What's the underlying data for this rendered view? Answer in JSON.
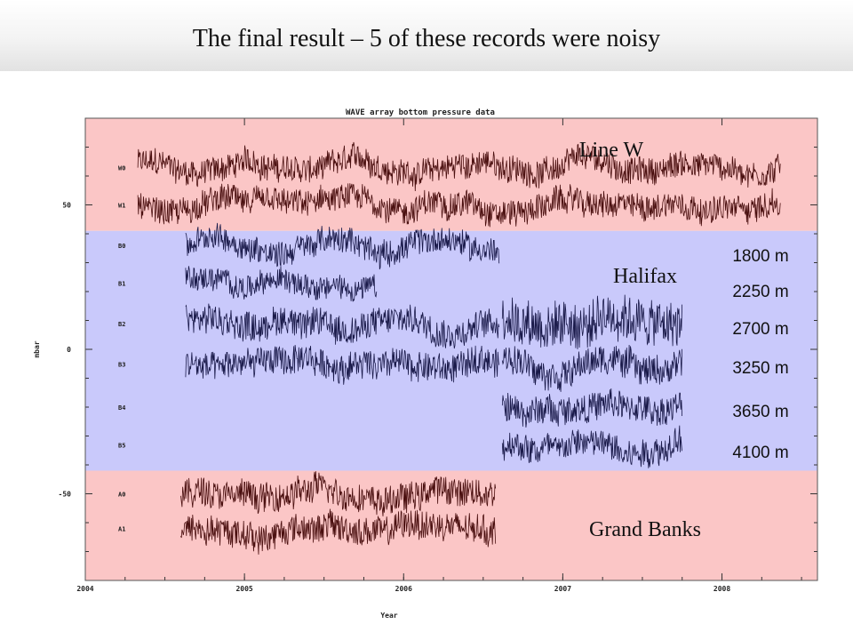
{
  "slide": {
    "title": "The final result – 5 of these records were noisy"
  },
  "chart_data": {
    "type": "line",
    "title": "WAVE array bottom pressure data",
    "xlabel": "Year",
    "ylabel": "mbar",
    "xlim": [
      2004,
      2008.6
    ],
    "ylim": [
      -80,
      80
    ],
    "x_ticks": [
      "2004",
      "2005",
      "2006",
      "2007",
      "2008"
    ],
    "y_ticks": [
      "50",
      "0",
      "-50"
    ],
    "regions": [
      {
        "name": "Line W",
        "y_range": [
          41,
          80
        ],
        "color": "#fbc6c6"
      },
      {
        "name": "Halifax",
        "y_range": [
          -42,
          41
        ],
        "color": "#c9c9fb"
      },
      {
        "name": "Grand Banks",
        "y_range": [
          -80,
          -42
        ],
        "color": "#fbc6c6"
      }
    ],
    "depth_labels": [
      "1800 m",
      "2250 m",
      "2700 m",
      "3250 m",
      "3650 m",
      "4100 m"
    ],
    "series": [
      {
        "name": "W0",
        "offset": 63,
        "segments": [
          [
            2004.33,
            2008.37
          ]
        ],
        "color": "#4a0f0f",
        "amp": 4.5
      },
      {
        "name": "W1",
        "offset": 50,
        "segments": [
          [
            2004.33,
            2008.37
          ]
        ],
        "color": "#4a0f0f",
        "amp": 4.5
      },
      {
        "name": "B0",
        "offset": 36,
        "segments": [
          [
            2004.63,
            2006.6
          ]
        ],
        "color": "#1a1a4a",
        "amp": 4.5
      },
      {
        "name": "B1",
        "offset": 23,
        "segments": [
          [
            2004.63,
            2005.83
          ]
        ],
        "color": "#1a1a4a",
        "amp": 4
      },
      {
        "name": "B2",
        "offset": 9,
        "segments": [
          [
            2004.63,
            2006.6
          ],
          [
            2006.62,
            2007.75
          ]
        ],
        "color": "#1a1a4a",
        "amp": 5
      },
      {
        "name": "B3",
        "offset": -5,
        "segments": [
          [
            2004.63,
            2006.6
          ],
          [
            2006.62,
            2007.75
          ]
        ],
        "color": "#1a1a4a",
        "amp": 5
      },
      {
        "name": "B4",
        "offset": -20,
        "segments": [
          [
            2006.62,
            2007.75
          ]
        ],
        "color": "#1a1a4a",
        "amp": 5
      },
      {
        "name": "B5",
        "offset": -33,
        "segments": [
          [
            2006.62,
            2007.75
          ]
        ],
        "color": "#1a1a4a",
        "amp": 5
      },
      {
        "name": "A0",
        "offset": -50,
        "segments": [
          [
            2004.6,
            2006.58
          ]
        ],
        "color": "#4a0f0f",
        "amp": 5
      },
      {
        "name": "A1",
        "offset": -62,
        "segments": [
          [
            2004.6,
            2006.58
          ]
        ],
        "color": "#4a0f0f",
        "amp": 5
      }
    ]
  }
}
